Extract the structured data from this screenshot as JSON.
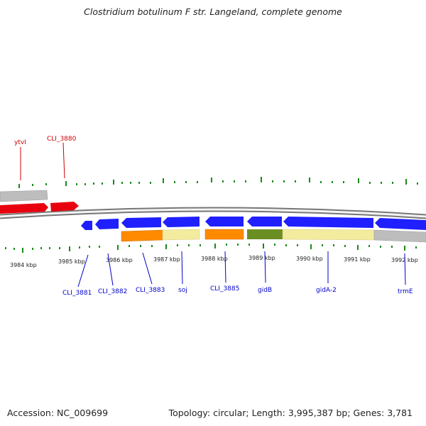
{
  "title": "Clostridium botulinum F str. Langeland, complete genome",
  "footer": {
    "accession": "Accession: NC_009699",
    "summary": "Topology: circular; Length: 3,995,387 bp; Genes: 3,781"
  },
  "colors": {
    "forward_gene": "#e8000e",
    "reverse_gene": "#1f1fff",
    "pseudo_grey": "#bdbdbd",
    "orange": "#ff8a00",
    "light_yellow": "#f3eb9e",
    "olive": "#6b8e23",
    "tick": "#1a8a1a",
    "label_forward": "#cc0000",
    "label_reverse": "#0000cc",
    "backbone": "#888888"
  },
  "scale_labels": [
    "3984 kbp",
    "3985 kbp",
    "3986 kbp",
    "3987 kbp",
    "3988 kbp",
    "3989 kbp",
    "3990 kbp",
    "3991 kbp",
    "3992 kbp"
  ],
  "forward_labels": [
    "ytvI",
    "CLI_3880"
  ],
  "reverse_labels": [
    "CLI_3881",
    "CLI_3882",
    "CLI_3883",
    "soj",
    "CLI_3885",
    "gidB",
    "gidA-2",
    "trmE"
  ]
}
